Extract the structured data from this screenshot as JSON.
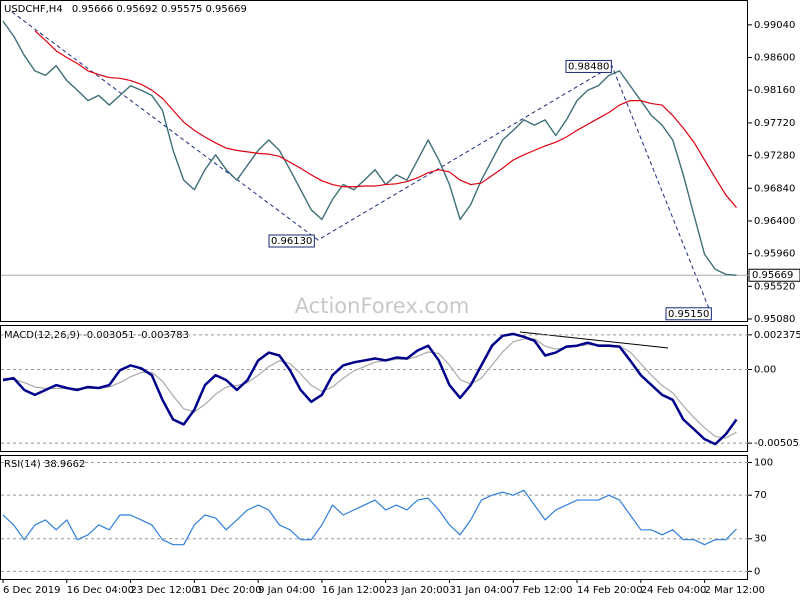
{
  "chart_data": [
    {
      "type": "line",
      "symbol": "USDCHF,H4",
      "ohlc": [
        0.95666,
        0.95692,
        0.95575,
        0.95669
      ],
      "watermark": "ActionForex.com",
      "last": 0.95669,
      "ylim": [
        0.95053,
        0.99361
      ],
      "yticks": [
        {
          "value": 0.9904,
          "label": "0.99040"
        },
        {
          "value": 0.986,
          "label": "0.98600"
        },
        {
          "value": 0.9816,
          "label": "0.98160"
        },
        {
          "value": 0.9772,
          "label": "0.97720"
        },
        {
          "value": 0.9728,
          "label": "0.97280"
        },
        {
          "value": 0.9684,
          "label": "0.96840"
        },
        {
          "value": 0.964,
          "label": "0.96400"
        },
        {
          "value": 0.9596,
          "label": "0.95960"
        },
        {
          "value": 0.9552,
          "label": "0.95520"
        },
        {
          "value": 0.9508,
          "label": "0.95080"
        }
      ],
      "grid": false,
      "annotations": [
        {
          "value": 0.9613,
          "label": "0.96130"
        },
        {
          "value": 0.9848,
          "label": "0.98480"
        },
        {
          "value": 0.9515,
          "label": "0.95150"
        }
      ],
      "series": [
        {
          "color": "#3e6f78",
          "values": [
            0.9909,
            0.9889,
            0.9863,
            0.9842,
            0.9836,
            0.9849,
            0.9829,
            0.9816,
            0.9802,
            0.9809,
            0.9796,
            0.9809,
            0.9822,
            0.9816,
            0.9809,
            0.9789,
            0.9735,
            0.9695,
            0.9682,
            0.9709,
            0.9729,
            0.9709,
            0.9695,
            0.9715,
            0.9735,
            0.9749,
            0.9735,
            0.9709,
            0.9682,
            0.9655,
            0.9642,
            0.9669,
            0.9689,
            0.9682,
            0.9695,
            0.9709,
            0.9689,
            0.9702,
            0.9695,
            0.9722,
            0.9749,
            0.9722,
            0.9689,
            0.9642,
            0.9662,
            0.9695,
            0.9722,
            0.9749,
            0.9762,
            0.9776,
            0.9769,
            0.9776,
            0.9755,
            0.9776,
            0.9802,
            0.9816,
            0.9822,
            0.9836,
            0.9842,
            0.9822,
            0.9802,
            0.9782,
            0.9769,
            0.9749,
            0.9702,
            0.9648,
            0.9595,
            0.9575,
            0.9568,
            0.9567
          ]
        },
        {
          "color": "#e00010",
          "values": [
            null,
            null,
            null,
            0.9896,
            0.9883,
            0.9869,
            0.986,
            0.9852,
            0.9842,
            0.9837,
            0.9833,
            0.9832,
            0.9829,
            0.9824,
            0.9816,
            0.9805,
            0.9789,
            0.9773,
            0.9762,
            0.9753,
            0.9745,
            0.9738,
            0.9735,
            0.9733,
            0.9731,
            0.973,
            0.9727,
            0.9719,
            0.9711,
            0.9702,
            0.9694,
            0.9689,
            0.9686,
            0.9686,
            0.9687,
            0.9687,
            0.9689,
            0.969,
            0.9693,
            0.9698,
            0.9705,
            0.9709,
            0.9706,
            0.9695,
            0.9689,
            0.9691,
            0.9701,
            0.9711,
            0.9722,
            0.9729,
            0.9735,
            0.9741,
            0.9746,
            0.9753,
            0.9762,
            0.977,
            0.9778,
            0.9786,
            0.9796,
            0.9802,
            0.9802,
            0.9798,
            0.9796,
            0.9782,
            0.9765,
            0.9746,
            0.9722,
            0.9698,
            0.9675,
            0.9658
          ]
        }
      ]
    },
    {
      "type": "line",
      "name": "MACD(12,26,9)",
      "readout": [
        -0.003051,
        -0.003783
      ],
      "ylim": [
        -0.005592,
        0.002983
      ],
      "yticks": [
        0.002375,
        {
          "value": 0,
          "label": "0.00"
        },
        -0.005052
      ],
      "grid": true,
      "series": [
        {
          "color": "#aaaaaa",
          "values": [
            -0.0006,
            -0.00065,
            -0.0009,
            -0.0012,
            -0.0013,
            -0.0013,
            -0.0013,
            -0.0013,
            -0.0013,
            -0.0013,
            -0.0012,
            -0.0009,
            -0.0005,
            -0.0002,
            -0.0002,
            -0.0008,
            -0.0018,
            -0.0027,
            -0.0029,
            -0.0024,
            -0.0017,
            -0.0012,
            -0.0011,
            -0.0009,
            -0.0004,
            0.0002,
            0.0006,
            0.0004,
            -0.0003,
            -0.0011,
            -0.0015,
            -0.0012,
            -0.0006,
            -0.0001,
            0.0002,
            0.0005,
            0.0006,
            0.0007,
            0.0007,
            0.0009,
            0.0012,
            0.0011,
            0.0003,
            -0.0007,
            -0.001,
            -0.0006,
            0.0003,
            0.0012,
            0.0019,
            0.0021,
            0.0021,
            0.0016,
            0.0014,
            0.0015,
            0.0016,
            0.0017,
            0.0017,
            0.0017,
            0.0016,
            0.0012,
            0.0004,
            -0.0004,
            -0.0011,
            -0.0016,
            -0.0025,
            -0.0033,
            -0.004,
            -0.0046,
            -0.0047,
            -0.0043
          ]
        },
        {
          "color": "#00008b",
          "values": [
            -0.00073,
            -0.000595,
            -0.001405,
            -0.00174,
            -0.001405,
            -0.00107,
            -0.00127,
            -0.001405,
            -0.0012,
            -0.00127,
            -0.00107,
            -5.5e-05,
            0.00028,
            8e-05,
            -0.00039,
            -0.00208,
            -0.00343,
            -0.00377,
            -0.00276,
            -0.00107,
            -0.00039,
            -0.00073,
            -0.001405,
            -0.00073,
            0.00062,
            0.00116,
            0.00096,
            -5.5e-05,
            -0.001405,
            -0.00222,
            -0.00174,
            -0.00039,
            0.00028,
            0.000485,
            0.00062,
            0.000755,
            0.00062,
            0.00082,
            0.000755,
            0.0013,
            0.00163,
            0.00062,
            -0.00107,
            -0.00195,
            -0.00107,
            0.00028,
            0.00163,
            0.00231,
            0.00244,
            0.00224,
            0.00197,
            0.00096,
            0.00116,
            0.00157,
            0.00163,
            0.00184,
            0.00163,
            0.00163,
            0.00157,
            0.00062,
            -0.00039,
            -0.00107,
            -0.00174,
            -0.00208,
            -0.00343,
            -0.0041,
            -0.00478,
            -0.00512,
            -0.00444,
            -0.00343
          ]
        }
      ]
    },
    {
      "type": "line",
      "name": "RSI(14)",
      "readout": [
        38.9662
      ],
      "ylim": [
        -7,
        106
      ],
      "yticks": [
        100,
        70,
        30,
        0
      ],
      "grid": true,
      "categories": [
        "6 Dec 2019",
        null,
        null,
        null,
        null,
        null,
        "16 Dec 04:00",
        null,
        null,
        null,
        null,
        null,
        "23 Dec 12:00",
        null,
        null,
        null,
        null,
        null,
        "31 Dec 20:00",
        null,
        null,
        null,
        null,
        null,
        "9 Jan 04:00",
        null,
        null,
        null,
        null,
        null,
        "16 Jan 12:00",
        null,
        null,
        null,
        null,
        null,
        "23 Jan 20:00",
        null,
        null,
        null,
        null,
        null,
        "31 Jan 04:00",
        null,
        null,
        null,
        null,
        null,
        "7 Feb 12:00",
        null,
        null,
        null,
        null,
        null,
        "14 Feb 20:00",
        null,
        null,
        null,
        null,
        null,
        "24 Feb 04:00",
        null,
        null,
        null,
        null,
        null,
        "2 Mar 12:00",
        null,
        null,
        null
      ],
      "series": [
        {
          "color": "#2f7fd8",
          "values": [
            51.8,
            42.7,
            29.1,
            42.7,
            47.3,
            38.2,
            47.3,
            29.1,
            33.6,
            42.7,
            38.2,
            51.8,
            51.8,
            47.3,
            42.7,
            29.1,
            24.5,
            24.5,
            42.7,
            51.8,
            49.1,
            38.2,
            47.3,
            56.4,
            60.9,
            56.4,
            42.7,
            38.2,
            29.1,
            29.1,
            42.7,
            60.9,
            51.8,
            56.4,
            60.9,
            65.5,
            56.4,
            60.9,
            56.4,
            65.5,
            67.3,
            56.4,
            42.7,
            33.6,
            47.3,
            65.5,
            70,
            72.7,
            70,
            74.5,
            60.9,
            47.3,
            56.4,
            60.9,
            65.5,
            65.5,
            65.5,
            70,
            65.5,
            51.8,
            38.2,
            38.2,
            33.6,
            38.2,
            29.1,
            29.1,
            24.5,
            29.1,
            29.1,
            39
          ]
        }
      ]
    }
  ]
}
